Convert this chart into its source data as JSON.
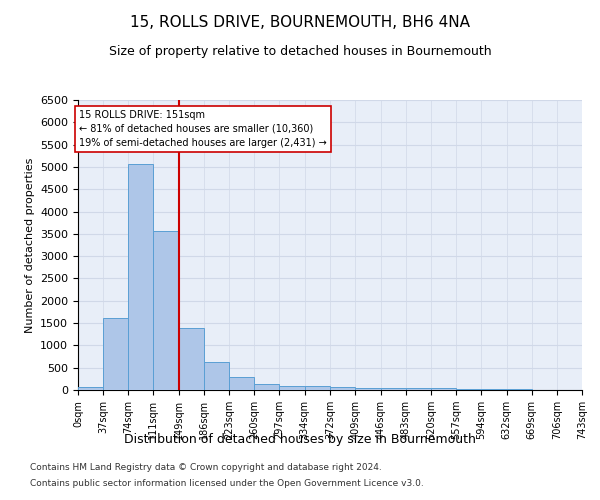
{
  "title": "15, ROLLS DRIVE, BOURNEMOUTH, BH6 4NA",
  "subtitle": "Size of property relative to detached houses in Bournemouth",
  "xlabel": "Distribution of detached houses by size in Bournemouth",
  "ylabel": "Number of detached properties",
  "footnote1": "Contains HM Land Registry data © Crown copyright and database right 2024.",
  "footnote2": "Contains public sector information licensed under the Open Government Licence v3.0.",
  "bin_edges": [
    0,
    37,
    74,
    111,
    149,
    186,
    223,
    260,
    297,
    334,
    372,
    409,
    446,
    483,
    520,
    557,
    594,
    632,
    669,
    706,
    743
  ],
  "bar_heights": [
    75,
    1625,
    5075,
    3575,
    1400,
    625,
    290,
    140,
    95,
    80,
    60,
    55,
    50,
    40,
    35,
    30,
    20,
    15,
    10,
    8
  ],
  "bar_color": "#aec6e8",
  "bar_edge_color": "#5a9fd4",
  "vline_color": "#cc0000",
  "vline_x": 149,
  "annotation_text": "15 ROLLS DRIVE: 151sqm\n← 81% of detached houses are smaller (10,360)\n19% of semi-detached houses are larger (2,431) →",
  "annotation_box_color": "#ffffff",
  "annotation_box_edge": "#cc0000",
  "ylim": [
    0,
    6500
  ],
  "yticks": [
    0,
    500,
    1000,
    1500,
    2000,
    2500,
    3000,
    3500,
    4000,
    4500,
    5000,
    5500,
    6000,
    6500
  ],
  "grid_color": "#d0d8e8",
  "background_color": "#e8eef8"
}
